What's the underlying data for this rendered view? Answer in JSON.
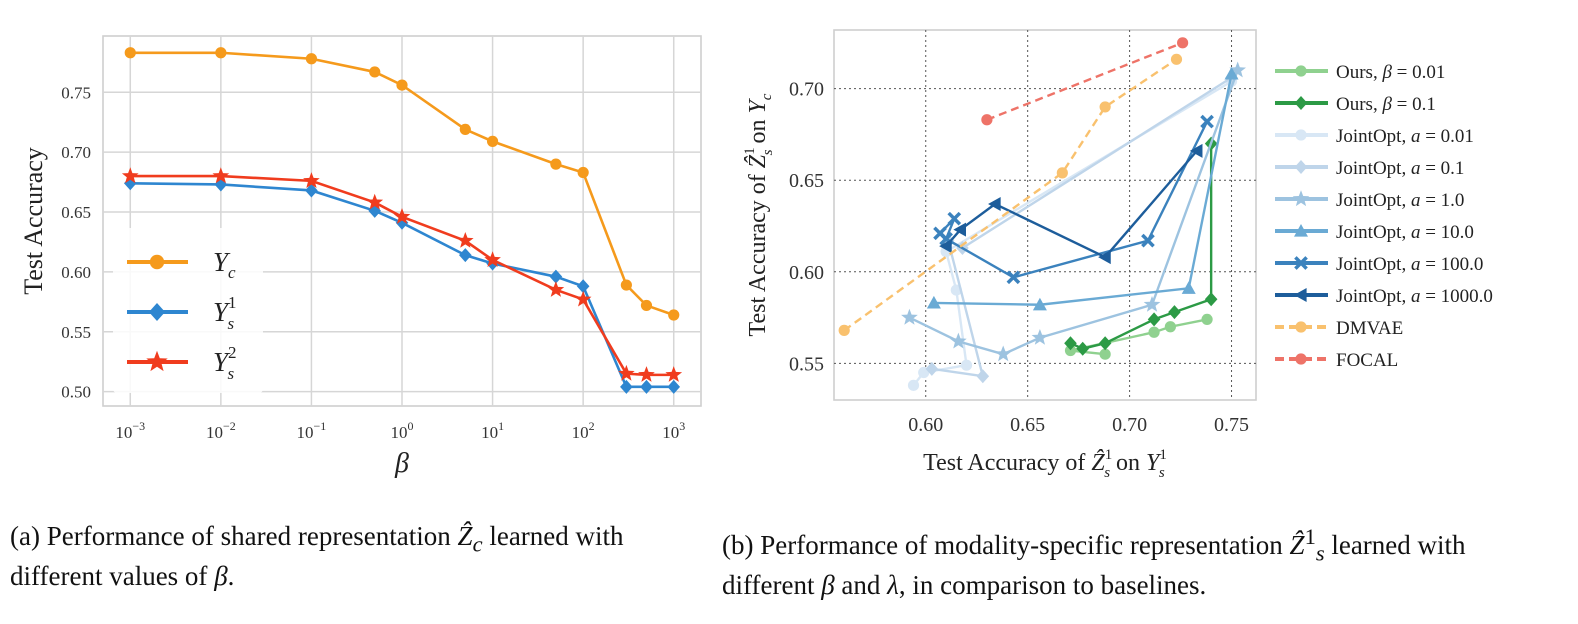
{
  "chart_data": [
    {
      "type": "line",
      "xlabel": "β",
      "ylabel": "Test Accuracy",
      "xscale": "log",
      "xlim": [
        0.0005,
        2000
      ],
      "ylim": [
        0.488,
        0.797
      ],
      "x": [
        0.001,
        0.01,
        0.1,
        0.5,
        1,
        5,
        10,
        50,
        100,
        300,
        500,
        1000
      ],
      "x_ticks": [
        0.001,
        0.01,
        0.1,
        1,
        10,
        100,
        1000
      ],
      "x_tick_labels": [
        {
          "base": "10",
          "exp": "−3"
        },
        {
          "base": "10",
          "exp": "−2"
        },
        {
          "base": "10",
          "exp": "−1"
        },
        {
          "base": "10",
          "exp": "0"
        },
        {
          "base": "10",
          "exp": "1"
        },
        {
          "base": "10",
          "exp": "2"
        },
        {
          "base": "10",
          "exp": "3"
        }
      ],
      "y_ticks": [
        0.5,
        0.55,
        0.6,
        0.65,
        0.7,
        0.75
      ],
      "y_tick_labels": [
        "0.50",
        "0.55",
        "0.60",
        "0.65",
        "0.70",
        "0.75"
      ],
      "grid": true,
      "legend_position": "lower-left",
      "series": [
        {
          "key": "yc",
          "name": "Y_c",
          "legend": {
            "main": "Y",
            "sub": "c",
            "sup": ""
          },
          "color": "#F59A1C",
          "marker": "circle",
          "values": [
            0.783,
            0.783,
            0.778,
            0.767,
            0.756,
            0.719,
            0.709,
            0.69,
            0.683,
            0.589,
            0.572,
            0.564
          ]
        },
        {
          "key": "ys1",
          "name": "Y_s^1",
          "legend": {
            "main": "Y",
            "sub": "s",
            "sup": "1"
          },
          "color": "#2E86D0",
          "marker": "diamond",
          "values": [
            0.674,
            0.673,
            0.668,
            0.651,
            0.641,
            0.614,
            0.607,
            0.596,
            0.588,
            0.504,
            0.504,
            0.504
          ]
        },
        {
          "key": "ys2",
          "name": "Y_s^2",
          "legend": {
            "main": "Y",
            "sub": "s",
            "sup": "2"
          },
          "color": "#F03C1E",
          "marker": "star",
          "values": [
            0.68,
            0.68,
            0.676,
            0.658,
            0.646,
            0.626,
            0.61,
            0.585,
            0.577,
            0.515,
            0.514,
            0.514
          ]
        }
      ]
    },
    {
      "type": "scatter",
      "xlabel": "Test Accuracy of Ẑ¹ₛ on Y¹ₛ",
      "ylabel": "Test Accuracy of Ẑ¹ₛ on Y_c",
      "xlim": [
        0.555,
        0.762
      ],
      "ylim": [
        0.53,
        0.732
      ],
      "x_ticks": [
        0.6,
        0.65,
        0.7,
        0.75
      ],
      "x_tick_labels": [
        "0.60",
        "0.65",
        "0.70",
        "0.75"
      ],
      "y_ticks": [
        0.55,
        0.6,
        0.65,
        0.7
      ],
      "y_tick_labels": [
        "0.55",
        "0.60",
        "0.65",
        "0.70"
      ],
      "grid": true,
      "grid_style": "dotted",
      "legend_position": "outside-right",
      "series": [
        {
          "name": "Ours, β = 0.01",
          "label": {
            "pre": "Ours, ",
            "var": "β",
            "post": " = 0.01"
          },
          "color": "#8FD18F",
          "marker": "circle",
          "dash": false,
          "opacity": 1,
          "points": [
            [
              0.688,
              0.555
            ],
            [
              0.671,
              0.557
            ],
            [
              0.712,
              0.567
            ],
            [
              0.72,
              0.57
            ],
            [
              0.738,
              0.574
            ]
          ]
        },
        {
          "name": "Ours, β = 0.1",
          "label": {
            "pre": "Ours, ",
            "var": "β",
            "post": " = 0.1"
          },
          "color": "#2C9A45",
          "marker": "diamond",
          "dash": false,
          "opacity": 1,
          "points": [
            [
              0.671,
              0.561
            ],
            [
              0.677,
              0.558
            ],
            [
              0.688,
              0.561
            ],
            [
              0.712,
              0.574
            ],
            [
              0.722,
              0.578
            ],
            [
              0.74,
              0.585
            ],
            [
              0.74,
              0.67
            ]
          ]
        },
        {
          "name": "JointOpt, a = 0.01",
          "label": {
            "pre": "JointOpt, ",
            "var": "a",
            "post": " = 0.01"
          },
          "color": "#D8E7F5",
          "marker": "circle",
          "dash": false,
          "opacity": 1,
          "points": [
            [
              0.594,
              0.538
            ],
            [
              0.599,
              0.545
            ],
            [
              0.62,
              0.549
            ],
            [
              0.615,
              0.59
            ],
            [
              0.61,
              0.611
            ],
            [
              0.75,
              0.704
            ]
          ]
        },
        {
          "name": "JointOpt, a = 0.1",
          "label": {
            "pre": "JointOpt, ",
            "var": "a",
            "post": " = 0.1"
          },
          "color": "#BFD5EA",
          "marker": "diamond",
          "dash": false,
          "opacity": 1,
          "points": [
            [
              0.603,
              0.547
            ],
            [
              0.628,
              0.543
            ],
            [
              0.611,
              0.617
            ],
            [
              0.618,
              0.613
            ],
            [
              0.75,
              0.706
            ]
          ]
        },
        {
          "name": "JointOpt, a = 1.0",
          "label": {
            "pre": "JointOpt, ",
            "var": "a",
            "post": " = 1.0"
          },
          "color": "#9DC3E0",
          "marker": "star",
          "dash": false,
          "opacity": 1,
          "points": [
            [
              0.592,
              0.575
            ],
            [
              0.616,
              0.562
            ],
            [
              0.638,
              0.555
            ],
            [
              0.656,
              0.564
            ],
            [
              0.711,
              0.582
            ],
            [
              0.753,
              0.71
            ]
          ]
        },
        {
          "name": "JointOpt, a = 10.0",
          "label": {
            "pre": "JointOpt, ",
            "var": "a",
            "post": " = 10.0"
          },
          "color": "#6AAAD4",
          "marker": "triangle",
          "dash": false,
          "opacity": 1,
          "points": [
            [
              0.604,
              0.583
            ],
            [
              0.656,
              0.582
            ],
            [
              0.729,
              0.591
            ],
            [
              0.75,
              0.708
            ]
          ]
        },
        {
          "name": "JointOpt, a = 100.0",
          "label": {
            "pre": "JointOpt, ",
            "var": "a",
            "post": " = 100.0"
          },
          "color": "#3B82BD",
          "marker": "x",
          "dash": false,
          "opacity": 1,
          "points": [
            [
              0.607,
              0.621
            ],
            [
              0.614,
              0.629
            ],
            [
              0.61,
              0.618
            ],
            [
              0.643,
              0.597
            ],
            [
              0.709,
              0.617
            ],
            [
              0.738,
              0.682
            ]
          ]
        },
        {
          "name": "JointOpt, a = 1000.0",
          "label": {
            "pre": "JointOpt, ",
            "var": "a",
            "post": " = 1000.0"
          },
          "color": "#1D5D9B",
          "marker": "triangle-left",
          "dash": false,
          "opacity": 1,
          "points": [
            [
              0.61,
              0.614
            ],
            [
              0.617,
              0.623
            ],
            [
              0.634,
              0.637
            ],
            [
              0.688,
              0.608
            ],
            [
              0.733,
              0.666
            ]
          ]
        },
        {
          "name": "DMVAE",
          "label": {
            "pre": "DMVAE",
            "var": "",
            "post": ""
          },
          "color": "#F9C16E",
          "marker": "circle",
          "dash": true,
          "opacity": 1,
          "points": [
            [
              0.56,
              0.568
            ],
            [
              0.667,
              0.654
            ],
            [
              0.688,
              0.69
            ],
            [
              0.723,
              0.716
            ]
          ]
        },
        {
          "name": "FOCAL",
          "label": {
            "pre": "FOCAL",
            "var": "",
            "post": ""
          },
          "color": "#EE7368",
          "marker": "circle",
          "dash": true,
          "opacity": 1,
          "points": [
            [
              0.63,
              0.683
            ],
            [
              0.726,
              0.725
            ]
          ]
        }
      ]
    }
  ],
  "captions": {
    "a": {
      "label": "(a)",
      "text1": " Performance of shared representation ",
      "math": "Ẑ",
      "sub": "c",
      "text2": " learned with different values of ",
      "var": "β",
      "text3": "."
    },
    "b": {
      "label": "(b)",
      "text1": " Performance of modality-specific representation ",
      "math": "Ẑ",
      "sub": "s",
      "sup": "1",
      "text2": " learned with different ",
      "var1": "β",
      "text3": " and ",
      "var2": "λ",
      "text4": ", in comparison to baselines."
    }
  }
}
